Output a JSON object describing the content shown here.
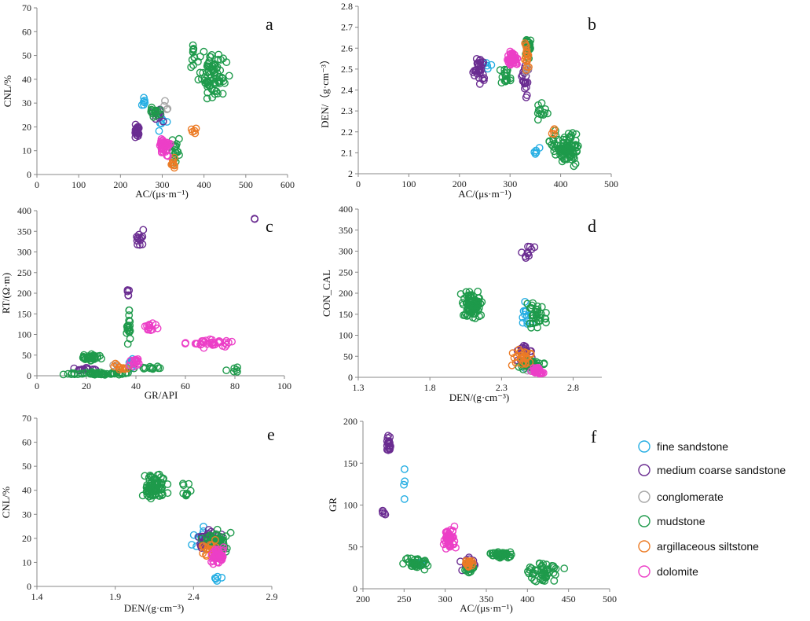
{
  "legend": [
    {
      "key": "fine",
      "label": "fine sandstone",
      "color": "#25aee3"
    },
    {
      "key": "medium",
      "label": "medium coarse sandstone",
      "color": "#6a2c91"
    },
    {
      "key": "conglomerate",
      "label": "conglomerate",
      "color": "#a6a6a6"
    },
    {
      "key": "mudstone",
      "label": "mudstone",
      "color": "#1e9a4b"
    },
    {
      "key": "argillaceous",
      "label": "argillaceous siltstone",
      "color": "#ec7b25"
    },
    {
      "key": "dolomite",
      "label": "dolomite",
      "color": "#ec3fc7"
    }
  ],
  "chart_data": [
    {
      "type": "scatter",
      "id": "a",
      "panel_label": "a",
      "xlabel": "AC/(μs·m⁻¹)",
      "ylabel": "CNL/%",
      "xlim": [
        0,
        600
      ],
      "ylim": [
        0,
        70
      ],
      "xticks": [
        "0",
        "100",
        "200",
        "300",
        "400",
        "500",
        "600"
      ],
      "yticks": [
        "0",
        "10",
        "20",
        "30",
        "40",
        "50",
        "60",
        "70"
      ],
      "series": [
        {
          "key": "fine",
          "clusters": [
            [
              255,
              30,
              15,
              4,
              6
            ],
            [
              300,
              22,
              25,
              6,
              6
            ]
          ]
        },
        {
          "key": "medium",
          "clusters": [
            [
              240,
              18,
              12,
              4,
              24
            ],
            [
              290,
              25,
              20,
              4,
              10
            ]
          ]
        },
        {
          "key": "conglomerate",
          "clusters": [
            [
              310,
              28,
              20,
              4,
              4
            ]
          ]
        },
        {
          "key": "mudstone",
          "clusters": [
            [
              420,
              42,
              45,
              12,
              80
            ],
            [
              280,
              27,
              20,
              3,
              14
            ],
            [
              330,
              10,
              15,
              8,
              22
            ],
            [
              375,
              50,
              10,
              8,
              10
            ]
          ]
        },
        {
          "key": "argillaceous",
          "clusters": [
            [
              325,
              5,
              8,
              4,
              8
            ],
            [
              375,
              18,
              10,
              4,
              5
            ]
          ]
        },
        {
          "key": "dolomite",
          "clusters": [
            [
              305,
              12,
              18,
              5,
              45
            ]
          ]
        }
      ]
    },
    {
      "type": "scatter",
      "id": "b",
      "panel_label": "b",
      "xlabel": "AC/(μs·m⁻¹)",
      "ylabel": "DEN/（g·cm⁻³）",
      "xlim": [
        0,
        500
      ],
      "ylim": [
        2,
        2.8
      ],
      "xticks": [
        "0",
        "100",
        "200",
        "300",
        "400",
        "500"
      ],
      "yticks": [
        "2",
        "2.1",
        "2.2",
        "2.3",
        "2.4",
        "2.5",
        "2.6",
        "2.7",
        "2.8"
      ],
      "series": [
        {
          "key": "fine",
          "clusters": [
            [
              255,
              2.52,
              15,
              0.03,
              5
            ],
            [
              350,
              2.1,
              10,
              0.05,
              5
            ]
          ]
        },
        {
          "key": "medium",
          "clusters": [
            [
              240,
              2.5,
              15,
              0.1,
              30
            ],
            [
              330,
              2.45,
              10,
              0.12,
              20
            ]
          ]
        },
        {
          "key": "conglomerate",
          "clusters": [
            [
              335,
              2.5,
              5,
              0.05,
              4
            ]
          ]
        },
        {
          "key": "mudstone",
          "clusters": [
            [
              410,
              2.12,
              40,
              0.1,
              90
            ],
            [
              335,
              2.6,
              8,
              0.08,
              30
            ],
            [
              290,
              2.46,
              20,
              0.05,
              18
            ],
            [
              360,
              2.3,
              20,
              0.1,
              12
            ]
          ]
        },
        {
          "key": "argillaceous",
          "clusters": [
            [
              332,
              2.55,
              6,
              0.1,
              18
            ],
            [
              385,
              2.2,
              8,
              0.04,
              4
            ]
          ]
        },
        {
          "key": "dolomite",
          "clusters": [
            [
              305,
              2.55,
              15,
              0.05,
              45
            ]
          ]
        }
      ]
    },
    {
      "type": "scatter",
      "id": "c",
      "panel_label": "c",
      "xlabel": "GR/API",
      "ylabel": "RT/(Ω·m)",
      "xlim": [
        0,
        100
      ],
      "ylim": [
        0,
        400
      ],
      "xticks": [
        "0",
        "20",
        "40",
        "60",
        "80",
        "100"
      ],
      "yticks": [
        "0",
        "50",
        "100",
        "150",
        "200",
        "250",
        "300",
        "350",
        "400"
      ],
      "series": [
        {
          "key": "fine",
          "clusters": [
            [
              38,
              30,
              2,
              20,
              10
            ]
          ]
        },
        {
          "key": "medium",
          "clusters": [
            [
              42,
              330,
              3,
              35,
              12
            ],
            [
              37,
              200,
              1,
              20,
              5
            ],
            [
              20,
              15,
              8,
              6,
              15
            ],
            [
              88,
              380,
              1,
              3,
              2
            ]
          ]
        },
        {
          "key": "conglomerate",
          "clusters": [
            [
              35,
              20,
              5,
              10,
              6
            ]
          ]
        },
        {
          "key": "mudstone",
          "clusters": [
            [
              25,
              5,
              18,
              5,
              55
            ],
            [
              22,
              45,
              5,
              10,
              35
            ],
            [
              37,
              120,
              1,
              60,
              20
            ],
            [
              45,
              20,
              8,
              6,
              12
            ],
            [
              80,
              15,
              5,
              10,
              6
            ]
          ]
        },
        {
          "key": "argillaceous",
          "clusters": [
            [
              33,
              20,
              4,
              15,
              10
            ]
          ]
        },
        {
          "key": "dolomite",
          "clusters": [
            [
              46,
              120,
              4,
              15,
              15
            ],
            [
              70,
              80,
              15,
              15,
              35
            ],
            [
              40,
              30,
              3,
              20,
              15
            ]
          ]
        }
      ]
    },
    {
      "type": "scatter",
      "id": "d",
      "panel_label": "d",
      "xlabel": "DEN/(g·cm⁻³)",
      "ylabel": "CON_CAL",
      "xlim": [
        1.3,
        3.0
      ],
      "ylim": [
        0,
        400
      ],
      "xticks": [
        "1.3",
        "1.8",
        "2.3",
        "2.8"
      ],
      "yticks": [
        "0",
        "50",
        "100",
        "150",
        "200",
        "250",
        "300",
        "350",
        "400"
      ],
      "series": [
        {
          "key": "fine",
          "clusters": [
            [
              2.47,
              150,
              0.06,
              50,
              12
            ],
            [
              2.5,
              20,
              0.05,
              10,
              8
            ]
          ]
        },
        {
          "key": "medium",
          "clusters": [
            [
              2.48,
              300,
              0.06,
              25,
              10
            ],
            [
              2.45,
              60,
              0.08,
              40,
              20
            ]
          ]
        },
        {
          "key": "conglomerate",
          "clusters": [
            [
              2.5,
              20,
              0.05,
              10,
              4
            ]
          ]
        },
        {
          "key": "mudstone",
          "clusters": [
            [
              2.1,
              170,
              0.1,
              45,
              80
            ],
            [
              2.55,
              150,
              0.1,
              50,
              35
            ],
            [
              2.5,
              30,
              0.12,
              15,
              40
            ]
          ]
        },
        {
          "key": "argillaceous",
          "clusters": [
            [
              2.45,
              50,
              0.1,
              30,
              25
            ]
          ]
        },
        {
          "key": "dolomite",
          "clusters": [
            [
              2.55,
              15,
              0.06,
              10,
              45
            ]
          ]
        }
      ]
    },
    {
      "type": "scatter",
      "id": "e",
      "panel_label": "e",
      "xlabel": "DEN/(g·cm⁻³)",
      "ylabel": "CNL/%",
      "xlim": [
        1.4,
        2.9
      ],
      "ylim": [
        0,
        70
      ],
      "xticks": [
        "1.4",
        "1.9",
        "2.4",
        "2.9"
      ],
      "yticks": [
        "0",
        "10",
        "20",
        "30",
        "40",
        "50",
        "60",
        "70"
      ],
      "series": [
        {
          "key": "fine",
          "clusters": [
            [
              2.45,
              20,
              0.08,
              8,
              15
            ],
            [
              2.55,
              3,
              0.05,
              2,
              5
            ]
          ]
        },
        {
          "key": "medium",
          "clusters": [
            [
              2.5,
              20,
              0.1,
              5,
              45
            ]
          ]
        },
        {
          "key": "conglomerate",
          "clusters": [
            [
              2.5,
              18,
              0.06,
              4,
              4
            ]
          ]
        },
        {
          "key": "mudstone",
          "clusters": [
            [
              2.15,
              42,
              0.1,
              8,
              80
            ],
            [
              2.55,
              18,
              0.12,
              7,
              55
            ],
            [
              2.35,
              40,
              0.05,
              6,
              10
            ]
          ]
        },
        {
          "key": "argillaceous",
          "clusters": [
            [
              2.5,
              15,
              0.1,
              5,
              20
            ]
          ]
        },
        {
          "key": "dolomite",
          "clusters": [
            [
              2.55,
              13,
              0.05,
              5,
              50
            ]
          ]
        }
      ]
    },
    {
      "type": "scatter",
      "id": "f",
      "panel_label": "f",
      "xlabel": "AC/(μs·m⁻¹)",
      "ylabel": "GR",
      "xlim": [
        200,
        500
      ],
      "ylim": [
        0,
        200
      ],
      "xticks": [
        "200",
        "250",
        "300",
        "350",
        "400",
        "450",
        "500"
      ],
      "yticks": [
        "0",
        "50",
        "100",
        "150",
        "200"
      ],
      "series": [
        {
          "key": "fine",
          "clusters": [
            [
              250,
              120,
              3,
              30,
              4
            ],
            [
              265,
              30,
              12,
              6,
              15
            ]
          ]
        },
        {
          "key": "medium",
          "clusters": [
            [
              232,
              170,
              5,
              20,
              18
            ],
            [
              225,
              90,
              3,
              5,
              6
            ],
            [
              330,
              30,
              15,
              10,
              15
            ]
          ]
        },
        {
          "key": "conglomerate",
          "clusters": [
            [
              330,
              28,
              10,
              5,
              4
            ]
          ]
        },
        {
          "key": "mudstone",
          "clusters": [
            [
              420,
              20,
              30,
              15,
              50
            ],
            [
              370,
              40,
              20,
              7,
              40
            ],
            [
              265,
              30,
              20,
              10,
              35
            ],
            [
              330,
              25,
              8,
              8,
              20
            ]
          ]
        },
        {
          "key": "argillaceous",
          "clusters": [
            [
              328,
              30,
              8,
              8,
              18
            ]
          ]
        },
        {
          "key": "dolomite",
          "clusters": [
            [
              305,
              60,
              10,
              18,
              50
            ]
          ]
        }
      ]
    }
  ]
}
